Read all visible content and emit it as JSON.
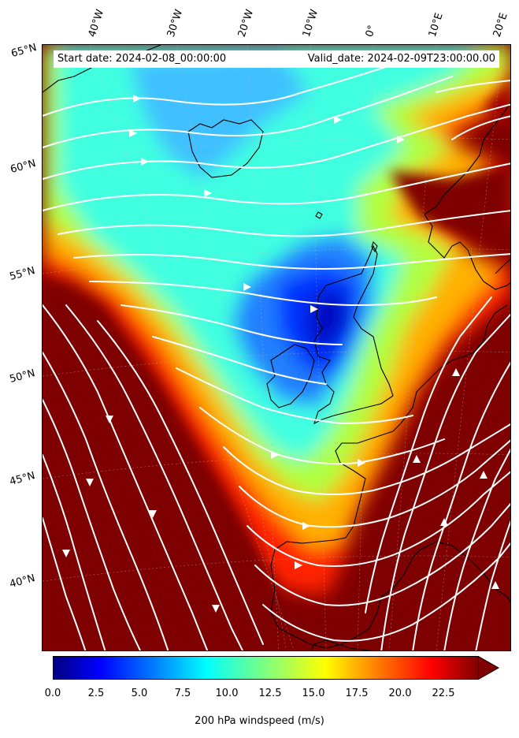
{
  "info": {
    "start_date": "Start date: 2024-02-08_00:00:00",
    "valid_date": "Valid_date: 2024-02-09T23:00:00.00"
  },
  "map": {
    "region": "North Atlantic and Western Europe",
    "field": "200 hPa windspeed",
    "overlay": "streamlines (white, with arrows)",
    "coastline_color": "#000000",
    "streamline_color": "#ffffff"
  },
  "graticule": {
    "longitudes": [
      "40°W",
      "30°W",
      "20°W",
      "10°W",
      "0°",
      "10°E",
      "20°E"
    ],
    "latitudes": [
      "65°N",
      "60°N",
      "55°N",
      "50°N",
      "45°N",
      "40°N"
    ]
  },
  "colorbar": {
    "label": "200 hPa windspeed (m/s)",
    "ticks": [
      "0.0",
      "2.5",
      "5.0",
      "7.5",
      "10.0",
      "12.5",
      "15.0",
      "17.5",
      "20.0",
      "22.5"
    ],
    "min": 0,
    "max": 25,
    "extend": "max",
    "colormap": "jet",
    "colors": [
      "#00007f",
      "#0000ff",
      "#007fff",
      "#00ffff",
      "#7fff7f",
      "#ffff00",
      "#ff7f00",
      "#ff0000",
      "#7f0000"
    ]
  }
}
